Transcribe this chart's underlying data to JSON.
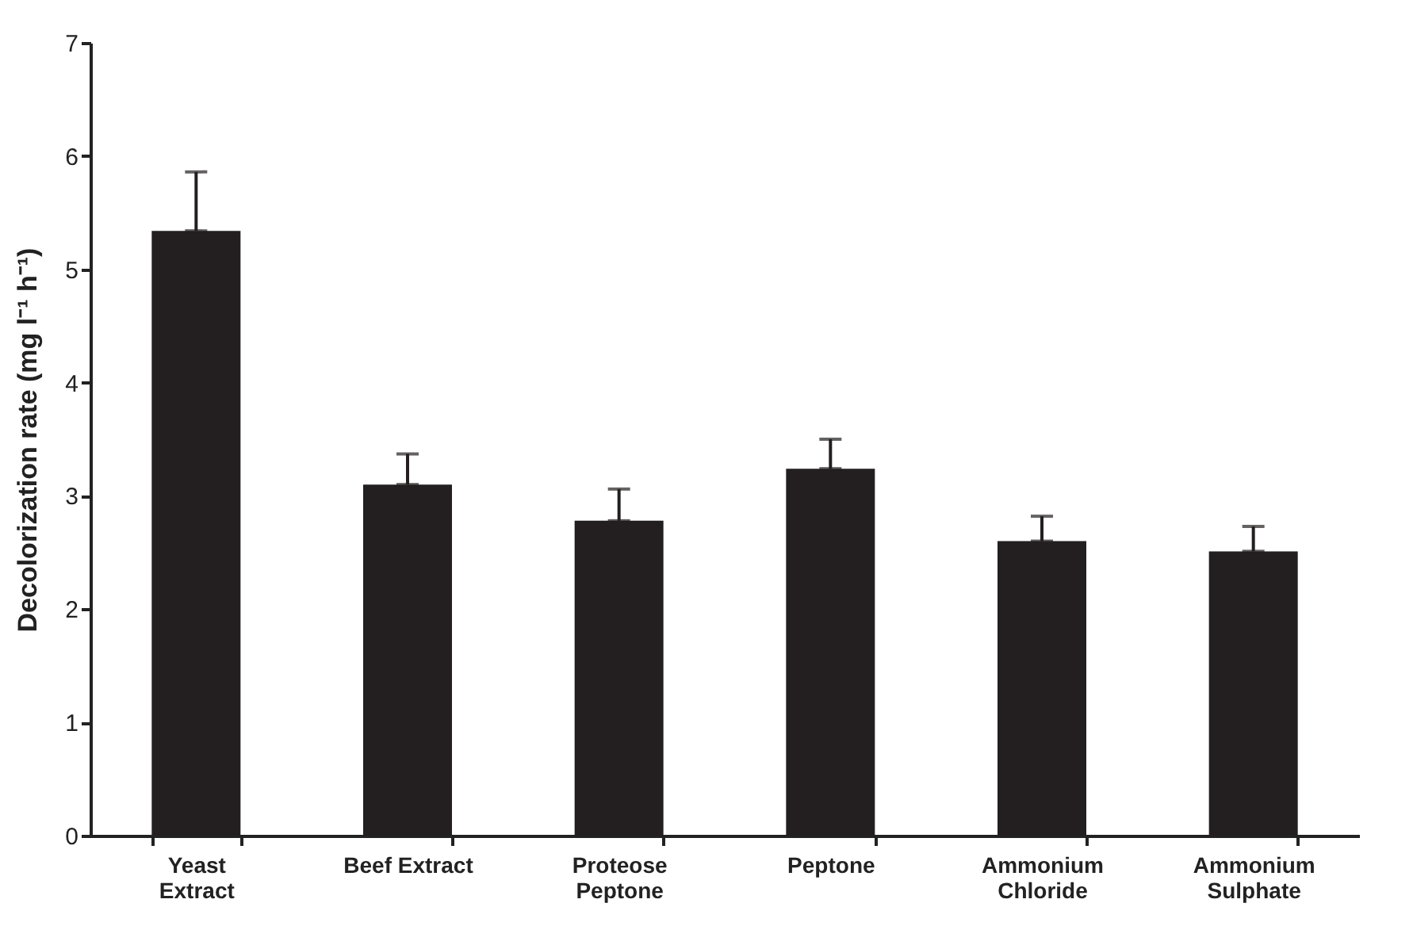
{
  "chart_data": {
    "type": "bar",
    "ylabel": "Decolorization rate (mg l⁻¹ h⁻¹)",
    "categories": [
      "Yeast Extract",
      "Beef Extract",
      "Proteose Peptone",
      "Peptone",
      "Ammonium Chloride",
      "Ammonium Sulphate"
    ],
    "values": [
      5.34,
      3.1,
      2.78,
      3.24,
      2.6,
      2.51
    ],
    "errors": [
      [
        5.34,
        5.86
      ],
      [
        3.1,
        3.37
      ],
      [
        2.78,
        3.06
      ],
      [
        3.24,
        3.5
      ],
      [
        2.6,
        2.82
      ],
      [
        2.51,
        2.73
      ]
    ],
    "color": "#231f20",
    "ylim": [
      0,
      7
    ],
    "yticks": [
      0,
      1,
      2,
      3,
      4,
      5,
      6,
      7
    ],
    "grid": false
  }
}
